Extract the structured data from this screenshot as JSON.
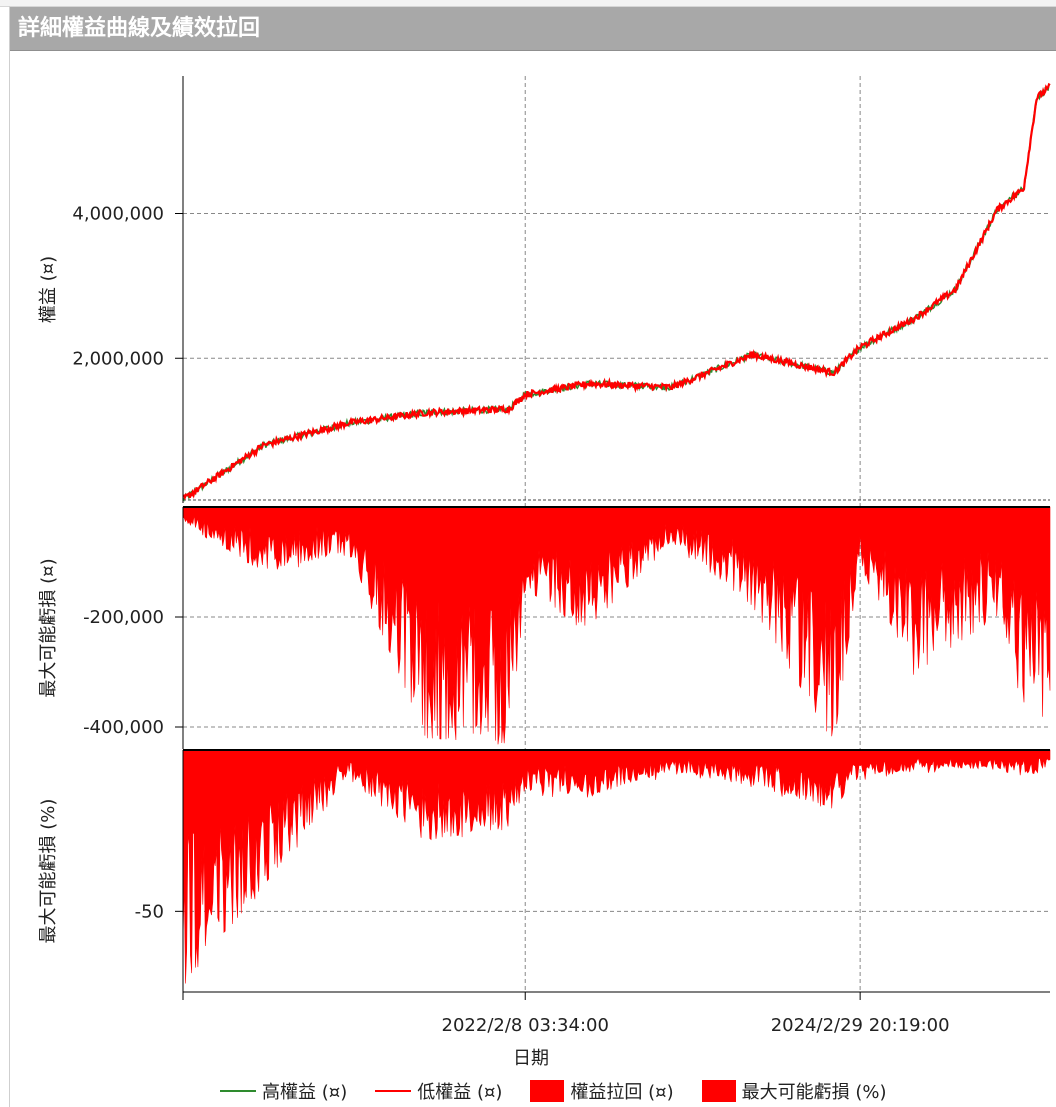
{
  "window": {
    "title": "詳細權益曲線及績效拉回"
  },
  "colors": {
    "high_equity": "#2e8b2e",
    "low_equity": "#ff0000",
    "drawdown": "#ff0000"
  },
  "chart_data": [
    {
      "type": "line",
      "ylabel": "權益 (¤)",
      "yticks": [
        "2,000,000",
        "4,000,000"
      ],
      "ylim": [
        0,
        5900000
      ],
      "x": [
        "2020/1/2",
        "2020/7/1",
        "2021/1/4",
        "2021/7/1",
        "2022/1/3",
        "2022/2/8",
        "2022/7/1",
        "2023/1/3",
        "2023/7/3",
        "2024/1/2",
        "2024/2/29",
        "2024/7/1",
        "2024/10/1",
        "2025/1/2",
        "2025/3/3",
        "2025/4/1",
        "2025/5/1"
      ],
      "series": [
        {
          "name": "高權益 (¤)",
          "values": [
            50000,
            800000,
            1100000,
            1250000,
            1300000,
            1500000,
            1650000,
            1600000,
            2050000,
            1800000,
            2150000,
            2550000,
            2950000,
            4050000,
            4350000,
            5600000,
            5750000
          ]
        },
        {
          "name": "低權益 (¤)",
          "values": [
            50000,
            800000,
            1100000,
            1250000,
            1300000,
            1500000,
            1650000,
            1600000,
            2050000,
            1800000,
            2150000,
            2550000,
            2950000,
            4050000,
            4350000,
            5600000,
            5750000
          ]
        }
      ]
    },
    {
      "type": "area",
      "ylabel": "最大可能虧損 (¤)",
      "yticks": [
        "-200,000",
        "-400,000"
      ],
      "ylim": [
        -440000,
        0
      ],
      "x": [
        "2020/1/2",
        "2020/7/1",
        "2021/1/4",
        "2021/7/1",
        "2022/1/3",
        "2022/2/8",
        "2022/7/1",
        "2023/1/3",
        "2023/7/3",
        "2024/1/2",
        "2024/2/29",
        "2024/7/1",
        "2024/10/1",
        "2025/1/2",
        "2025/3/3",
        "2025/4/1",
        "2025/5/1"
      ],
      "series": [
        {
          "name": "權益拉回 (¤)",
          "values": [
            -20000,
            -120000,
            -80000,
            -420000,
            -430000,
            -150000,
            -220000,
            -60000,
            -180000,
            -430000,
            -100000,
            -300000,
            -250000,
            -200000,
            -380000,
            -390000,
            -370000
          ]
        }
      ]
    },
    {
      "type": "area",
      "ylabel": "最大可能虧損 (%)",
      "yticks": [
        "-50"
      ],
      "ylim": [
        -75,
        0
      ],
      "x": [
        "2020/1/2",
        "2020/7/1",
        "2021/1/4",
        "2021/7/1",
        "2022/1/3",
        "2022/2/8",
        "2022/7/1",
        "2023/1/3",
        "2023/7/3",
        "2024/1/2",
        "2024/2/29",
        "2024/7/1",
        "2024/10/1",
        "2025/1/2",
        "2025/3/3",
        "2025/4/1",
        "2025/5/1"
      ],
      "series": [
        {
          "name": "最大可能虧損 (%)",
          "values": [
            -73,
            -42,
            -8,
            -28,
            -24,
            -12,
            -14,
            -6,
            -10,
            -18,
            -8,
            -6,
            -5,
            -5,
            -7,
            -6,
            -5
          ]
        }
      ]
    }
  ],
  "x_axis": {
    "title": "日期",
    "ticks": [
      "2022/2/8 03:34:00",
      "2024/2/29 20:19:00"
    ]
  },
  "legend": {
    "items": [
      {
        "label": "高權益 (¤)",
        "icon": "line",
        "color": "#2e8b2e"
      },
      {
        "label": "低權益 (¤)",
        "icon": "line",
        "color": "#ff0000"
      },
      {
        "label": "權益拉回 (¤)",
        "icon": "box",
        "color": "#ff0000"
      },
      {
        "label": "最大可能虧損 (%)",
        "icon": "box",
        "color": "#ff0000"
      }
    ]
  }
}
